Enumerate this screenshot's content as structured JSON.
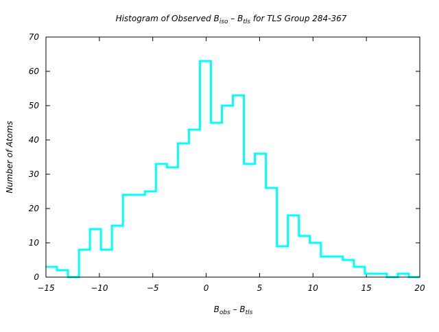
{
  "chart_data": {
    "type": "histogram",
    "title": {
      "main": "Histogram of Observed B",
      "sub1": "iso",
      "mid": " – B",
      "sub2": "tls",
      "tail": " for TLS Group 284-367"
    },
    "xlabel": {
      "main": "B",
      "sub1": "obs",
      "mid": " – B",
      "sub2": "tls"
    },
    "ylabel": "Number of Atoms",
    "xlim": [
      -15,
      20
    ],
    "ylim": [
      0,
      70
    ],
    "xticks": [
      -15,
      -10,
      -5,
      0,
      5,
      10,
      15,
      20
    ],
    "yticks": [
      0,
      10,
      20,
      30,
      40,
      50,
      60,
      70
    ],
    "bin_range": [
      -15,
      20
    ],
    "values": [
      3,
      2,
      0,
      8,
      14,
      8,
      15,
      24,
      24,
      25,
      33,
      32,
      39,
      43,
      63,
      45,
      50,
      53,
      33,
      36,
      26,
      9,
      18,
      12,
      10,
      6,
      6,
      5,
      3,
      1,
      1,
      0,
      1,
      0
    ],
    "color": "#00ffff",
    "grid": false
  }
}
